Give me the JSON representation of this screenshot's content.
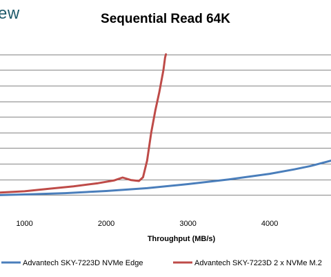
{
  "brand": {
    "logo_text": "ew"
  },
  "chart_data": {
    "type": "line",
    "title": "Sequential Read 64K",
    "xlabel": "Throughput (MB/s)",
    "ylabel": "",
    "xlim": [
      700,
      4750
    ],
    "ylim": [
      0,
      5.5
    ],
    "x_ticks": [
      1000,
      2000,
      3000,
      4000
    ],
    "gridlines_y": [
      0.5,
      1.0,
      1.5,
      2.0,
      2.5,
      3.0,
      3.5,
      4.0,
      4.5,
      5.0
    ],
    "grid": true,
    "legend_position": "bottom",
    "series": [
      {
        "name": "Advantech SKY-7223D NVMe Edge",
        "color": "#4a7ebb",
        "x": [
          700,
          1000,
          1500,
          2000,
          2500,
          3000,
          3500,
          4000,
          4300,
          4500,
          4750
        ],
        "y": [
          0.5,
          0.52,
          0.56,
          0.63,
          0.72,
          0.85,
          1.0,
          1.18,
          1.32,
          1.43,
          1.6
        ]
      },
      {
        "name": "Advantech SKY-7223D 2 x NVMe M.2",
        "color": "#be4b48",
        "x": [
          700,
          1000,
          1300,
          1600,
          1900,
          2100,
          2200,
          2300,
          2400,
          2450,
          2500,
          2550,
          2600,
          2650,
          2700,
          2720,
          2730
        ],
        "y": [
          0.58,
          0.62,
          0.7,
          0.78,
          0.88,
          0.97,
          1.06,
          0.98,
          0.95,
          1.07,
          1.6,
          2.5,
          3.2,
          3.8,
          4.5,
          4.9,
          5.0
        ]
      }
    ]
  }
}
